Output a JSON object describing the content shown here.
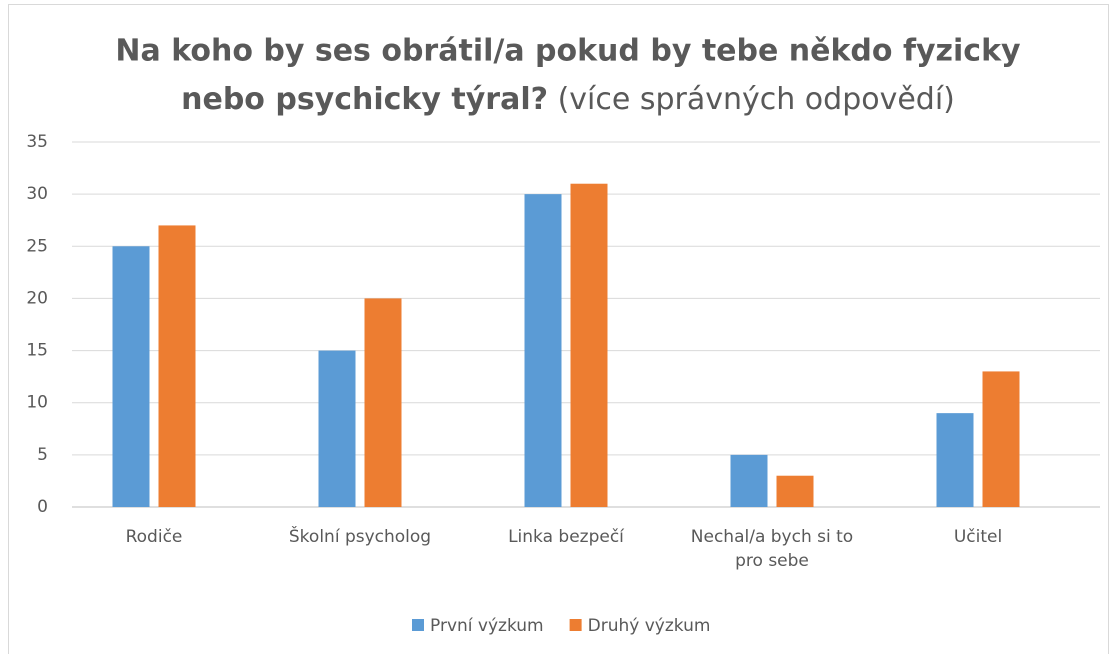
{
  "chart_data": {
    "type": "bar",
    "title": [
      "Na koho by ses obrátil/a pokud by tebe někdo fyzicky",
      "nebo psychicky týral?"
    ],
    "subtitle": "(více správných odpovědí)",
    "categories": [
      "Rodiče",
      "Školní psycholog",
      "Linka bezpečí",
      "Nechal/a bych si to pro sebe",
      "Učitel"
    ],
    "series": [
      {
        "name": "První výzkum",
        "color": "#5b9bd5",
        "values": [
          25,
          15,
          30,
          5,
          9
        ]
      },
      {
        "name": "Druhý výzkum",
        "color": "#ed7d31",
        "values": [
          27,
          20,
          31,
          3,
          13
        ]
      }
    ],
    "ylim": [
      0,
      35
    ],
    "yticks": [
      0,
      5,
      10,
      15,
      20,
      25,
      30,
      35
    ],
    "grid": true,
    "legend": "bottom"
  }
}
